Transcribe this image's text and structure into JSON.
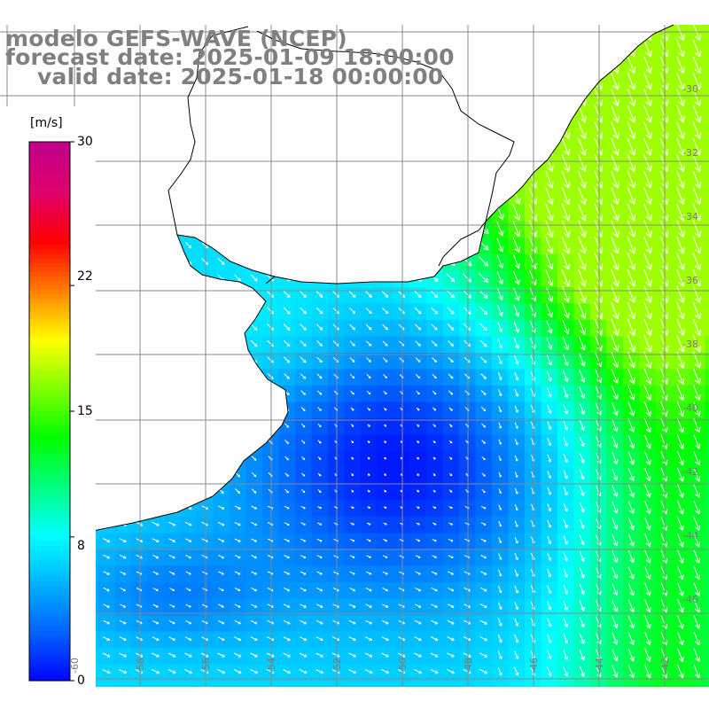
{
  "title": {
    "line1": "modelo GEFS-WAVE (NCEP)",
    "line2": "forecast date: 2025-01-09 18:00:00",
    "line3": "valid date: 2025-01-18 00:00:00"
  },
  "colorbar": {
    "unit": "[m/s]",
    "min": 0,
    "max": 30,
    "ticks": [
      "30",
      "22",
      "15",
      "8",
      "0"
    ],
    "tick_values": [
      30,
      22,
      15,
      8,
      0
    ],
    "colors": [
      "#0000ff",
      "#0060ff",
      "#00b0ff",
      "#00ffff",
      "#00ff80",
      "#00ff00",
      "#80ff00",
      "#ffff00",
      "#ff8000",
      "#ff0000",
      "#e0006a",
      "#c0008a"
    ]
  },
  "grid": {
    "lon_labels": [
      "-60",
      "-58",
      "-56",
      "-54",
      "-52",
      "-50",
      "-48",
      "-46",
      "-44",
      "-42"
    ],
    "lat_labels": [
      "-30",
      "-32",
      "-34",
      "-36",
      "-38",
      "-40",
      "-42",
      "-44",
      "-46"
    ]
  },
  "field": {
    "variable": "wind speed",
    "units": "m/s",
    "summary": "weak winds (0-6 m/s) over the central and southern South Atlantic shelf; stronger northeasterly winds (12-16 m/s) off southern Brazil in the north-east sector"
  }
}
